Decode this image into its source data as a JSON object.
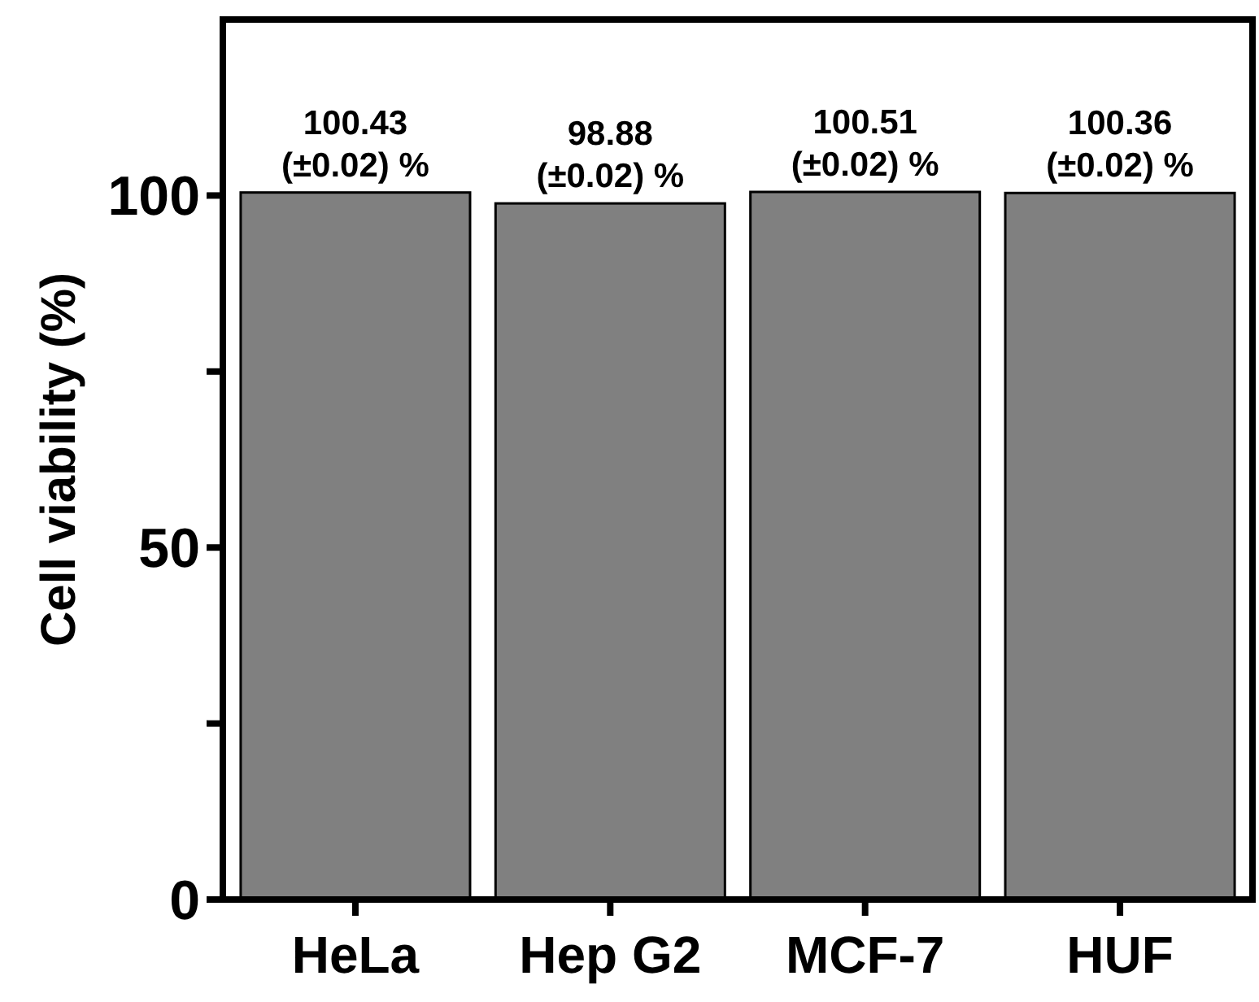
{
  "chart_data": {
    "type": "bar",
    "ylabel": "Cell viability (%)",
    "categories": [
      "HeLa",
      "Hep G2",
      "MCF-7",
      "HUF"
    ],
    "values": [
      100.43,
      98.88,
      100.51,
      100.36
    ],
    "color": "#808080",
    "value_labels": [
      "100.43\n(±0.02) %",
      "98.88\n(±0.02) %",
      "100.51\n(±0.02) %",
      "100.36\n(±0.02) %"
    ],
    "ylim": [
      0,
      125
    ],
    "yticks": [
      0,
      {
        "value": 25,
        "label": null
      },
      50,
      {
        "value": 75,
        "label": null
      },
      100
    ],
    "grid": false
  }
}
